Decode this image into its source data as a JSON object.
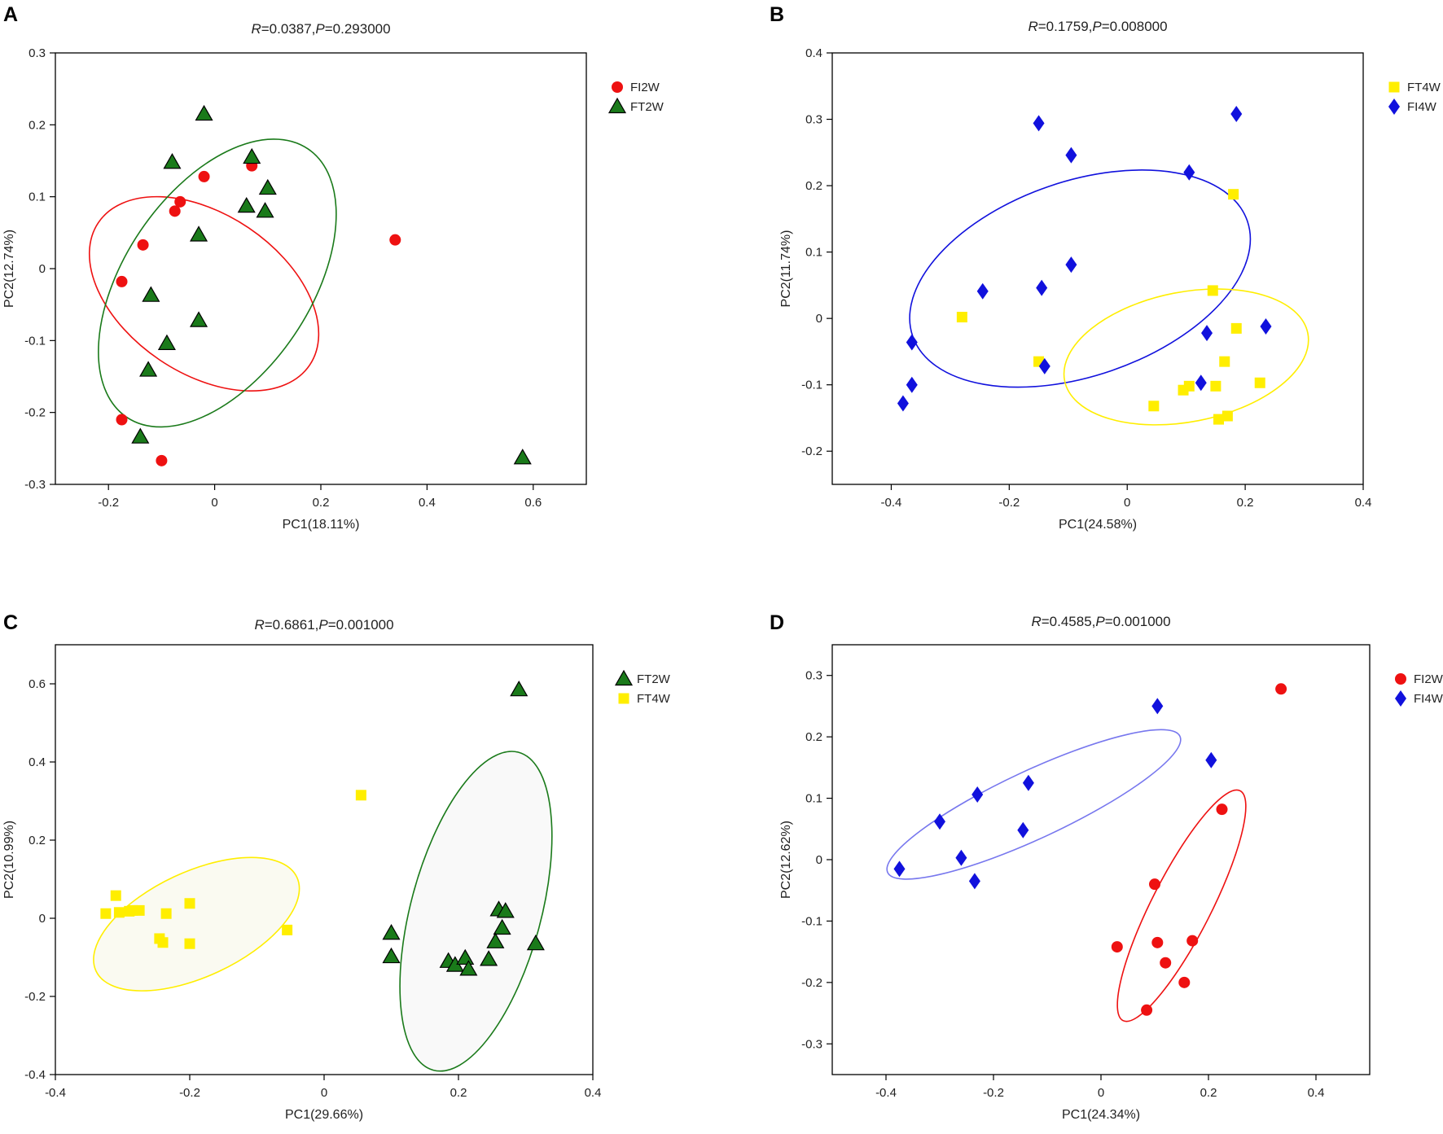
{
  "chart_data": [
    {
      "type": "scatter",
      "panel": "A",
      "title": "R=0.0387,P=0.293000",
      "title_parts": {
        "r_label": "R",
        "r_value": "=0.0387,",
        "p_label": "P",
        "p_value": "=0.293000"
      },
      "xlabel": "PC1(18.11%)",
      "ylabel": "PC2(12.74%)",
      "xlim": [
        -0.3,
        0.7
      ],
      "ylim": [
        -0.3,
        0.3
      ],
      "xticks": [
        -0.2,
        0,
        0.2,
        0.4,
        0.6
      ],
      "yticks": [
        -0.3,
        -0.2,
        -0.1,
        0,
        0.1,
        0.2,
        0.3
      ],
      "legend_position": "top-right",
      "series": [
        {
          "name": "FI2W",
          "marker": "circle",
          "color": "#ee1111",
          "x": [
            0.07,
            -0.02,
            -0.065,
            -0.075,
            -0.135,
            -0.175,
            -0.175,
            -0.1,
            0.34
          ],
          "y": [
            0.143,
            0.128,
            0.093,
            0.08,
            0.033,
            -0.018,
            -0.21,
            -0.267,
            0.04
          ]
        },
        {
          "name": "FT2W",
          "marker": "triangle",
          "color": "#1a7a1a",
          "x": [
            -0.02,
            -0.08,
            0.07,
            0.1,
            0.06,
            0.095,
            -0.03,
            -0.12,
            -0.03,
            -0.09,
            -0.125,
            -0.14,
            0.58
          ],
          "y": [
            0.215,
            0.148,
            0.155,
            0.112,
            0.087,
            0.08,
            0.047,
            -0.037,
            -0.072,
            -0.104,
            -0.141,
            -0.234,
            -0.263
          ]
        }
      ],
      "ellipses": [
        {
          "color": "#ee1111",
          "cx": -0.02,
          "cy": -0.035,
          "rx": 0.24,
          "ry": 0.15,
          "angle": 34
        },
        {
          "color": "#1a7a1a",
          "cx": 0.005,
          "cy": -0.02,
          "rx": 0.305,
          "ry": 0.175,
          "angle": -56
        }
      ]
    },
    {
      "type": "scatter",
      "panel": "B",
      "title": "R=0.1759,P=0.008000",
      "title_parts": {
        "r_label": "R",
        "r_value": "=0.1759,",
        "p_label": "P",
        "p_value": "=0.008000"
      },
      "xlabel": "PC1(24.58%)",
      "ylabel": "PC2(11.74%)",
      "xlim": [
        -0.5,
        0.4
      ],
      "ylim": [
        -0.25,
        0.4
      ],
      "xticks": [
        -0.4,
        -0.2,
        0,
        0.2,
        0.4
      ],
      "yticks": [
        -0.2,
        -0.1,
        0,
        0.1,
        0.2,
        0.3,
        0.4
      ],
      "legend_position": "top-right",
      "series": [
        {
          "name": "FT4W",
          "marker": "square",
          "color": "#ffee00",
          "x": [
            0.18,
            0.145,
            -0.28,
            0.185,
            -0.15,
            0.165,
            0.225,
            0.15,
            0.105,
            0.095,
            0.045,
            0.17,
            0.155
          ],
          "y": [
            0.187,
            0.042,
            0.002,
            -0.015,
            -0.065,
            -0.065,
            -0.097,
            -0.102,
            -0.102,
            -0.108,
            -0.132,
            -0.147,
            -0.152
          ]
        },
        {
          "name": "FI4W",
          "marker": "diamond",
          "color": "#1111dd",
          "x": [
            -0.15,
            0.185,
            -0.095,
            0.105,
            -0.095,
            -0.245,
            -0.145,
            0.135,
            0.235,
            -0.365,
            -0.14,
            0.125,
            -0.365,
            -0.38
          ],
          "y": [
            0.294,
            0.308,
            0.246,
            0.22,
            0.081,
            0.041,
            0.046,
            -0.022,
            -0.012,
            -0.036,
            -0.072,
            -0.097,
            -0.1,
            -0.128
          ]
        }
      ],
      "ellipses": [
        {
          "color": "#1111dd",
          "cx": -0.08,
          "cy": 0.06,
          "rx": 0.3,
          "ry": 0.165,
          "angle": -19
        },
        {
          "color": "#ffee00",
          "cx": 0.1,
          "cy": -0.058,
          "rx": 0.21,
          "ry": 0.11,
          "angle": -11
        }
      ]
    },
    {
      "type": "scatter",
      "panel": "C",
      "title": "R=0.6861,P=0.001000",
      "title_parts": {
        "r_label": "R",
        "r_value": "=0.6861,",
        "p_label": "P",
        "p_value": "=0.001000"
      },
      "xlabel": "PC1(29.66%)",
      "ylabel": "PC2(10.99%)",
      "xlim": [
        -0.4,
        0.4
      ],
      "ylim": [
        -0.4,
        0.7
      ],
      "xticks": [
        -0.4,
        -0.2,
        0,
        0.2,
        0.4
      ],
      "yticks": [
        -0.4,
        -0.2,
        0,
        0.2,
        0.4,
        0.6
      ],
      "legend_position": "top-right",
      "series": [
        {
          "name": "FT2W",
          "marker": "triangle",
          "color": "#1a7a1a",
          "x": [
            0.29,
            0.26,
            0.27,
            0.265,
            0.255,
            0.315,
            0.1,
            0.1,
            0.185,
            0.195,
            0.21,
            0.215,
            0.245
          ],
          "y": [
            0.585,
            0.022,
            0.018,
            -0.025,
            -0.06,
            -0.065,
            -0.038,
            -0.098,
            -0.11,
            -0.12,
            -0.102,
            -0.13,
            -0.105
          ]
        },
        {
          "name": "FT4W",
          "marker": "square",
          "color": "#ffee00",
          "x": [
            0.055,
            -0.31,
            -0.2,
            -0.325,
            -0.305,
            -0.29,
            -0.285,
            -0.275,
            -0.235,
            -0.055,
            -0.245,
            -0.24,
            -0.2
          ],
          "y": [
            0.315,
            0.058,
            0.038,
            0.012,
            0.015,
            0.018,
            0.02,
            0.02,
            0.012,
            -0.03,
            -0.052,
            -0.062,
            -0.065
          ]
        }
      ],
      "ellipses": [
        {
          "color": "#1a7a1a",
          "cx": 0.226,
          "cy": 0.018,
          "rx": 0.245,
          "ry": 0.097,
          "angle": -75,
          "fill": "#f8f8f8"
        },
        {
          "color": "#ffee00",
          "cx": -0.19,
          "cy": -0.015,
          "rx": 0.165,
          "ry": 0.078,
          "angle": -25,
          "fill": "#fafaf0"
        }
      ]
    },
    {
      "type": "scatter",
      "panel": "D",
      "title": "R=0.4585,P=0.001000",
      "title_parts": {
        "r_label": "R",
        "r_value": "=0.4585,",
        "p_label": "P",
        "p_value": "=0.001000"
      },
      "xlabel": "PC1(24.34%)",
      "ylabel": "PC2(12.62%)",
      "xlim": [
        -0.5,
        0.5
      ],
      "ylim": [
        -0.35,
        0.35
      ],
      "xticks": [
        -0.4,
        -0.2,
        0,
        0.2,
        0.4
      ],
      "yticks": [
        -0.3,
        -0.2,
        -0.1,
        0,
        0.1,
        0.2,
        0.3
      ],
      "legend_position": "top-right",
      "series": [
        {
          "name": "FI2W",
          "marker": "circle",
          "color": "#ee1111",
          "x": [
            0.335,
            0.225,
            0.1,
            0.03,
            0.105,
            0.17,
            0.12,
            0.155,
            0.085
          ],
          "y": [
            0.278,
            0.082,
            -0.04,
            -0.142,
            -0.135,
            -0.132,
            -0.168,
            -0.2,
            -0.245
          ]
        },
        {
          "name": "FI4W",
          "marker": "diamond",
          "color": "#1111dd",
          "x": [
            0.105,
            0.205,
            -0.135,
            -0.23,
            -0.3,
            -0.145,
            -0.26,
            -0.375,
            -0.235
          ],
          "y": [
            0.25,
            0.162,
            0.125,
            0.106,
            0.062,
            0.048,
            0.003,
            -0.015,
            -0.035
          ]
        }
      ],
      "ellipses": [
        {
          "color": "#7777ee",
          "cx": -0.125,
          "cy": 0.09,
          "rx": 0.3,
          "ry": 0.063,
          "angle": -25
        },
        {
          "color": "#ee1111",
          "cx": 0.15,
          "cy": -0.075,
          "rx": 0.24,
          "ry": 0.055,
          "angle": -63
        }
      ]
    }
  ]
}
